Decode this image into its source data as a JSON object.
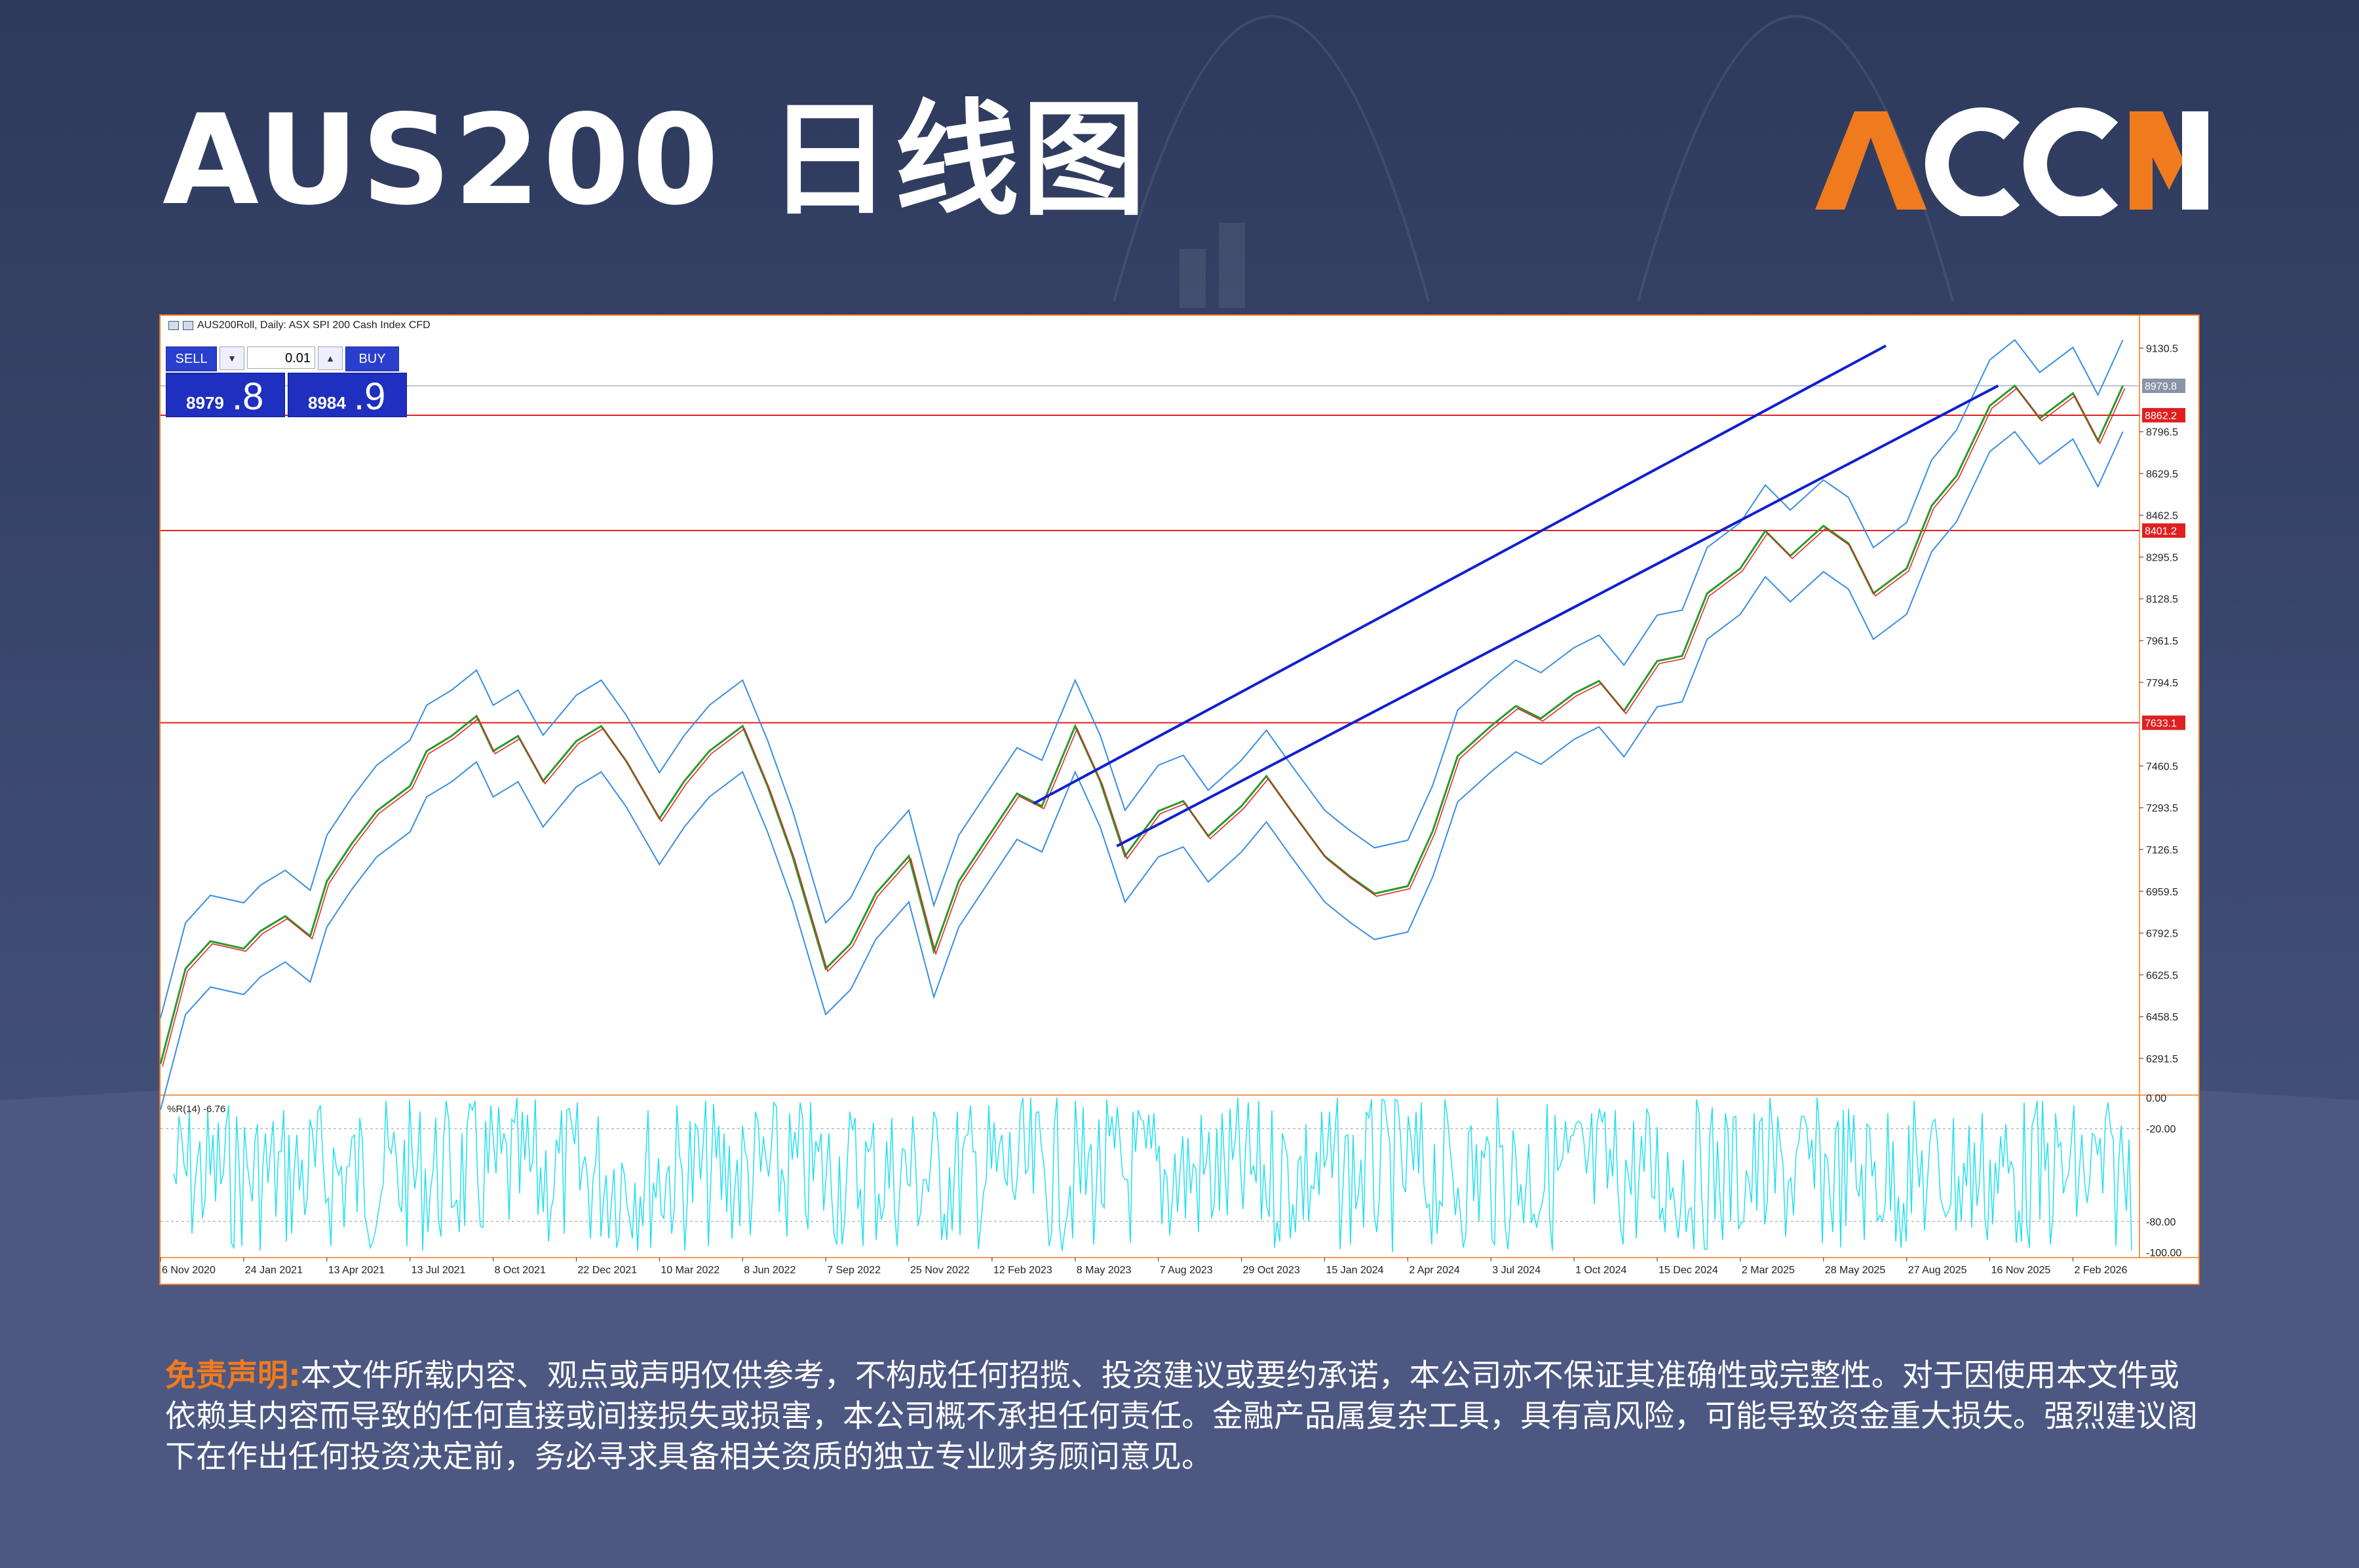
{
  "page": {
    "title": "AUS200 日线图",
    "logo_text": "ACCM",
    "disclaimer_label": "免责声明:",
    "disclaimer_text": "本文件所载内容、观点或声明仅供参考，不构成任何招揽、投资建议或要约承诺，本公司亦不保证其准确性或完整性。对于因使用本文件或依赖其内容而导致的任何直接或间接损失或损害，本公司概不承担任何责任。金融产品属复杂工具，具有高风险，可能导致资金重大损失。强烈建议阁下在作出任何投资决定前，务必寻求具备相关资质的独立专业财务顾问意见。",
    "colors": {
      "accent_orange": "#f07a1e",
      "background": "#2e3a5c"
    }
  },
  "trade_panel": {
    "sell_label": "SELL",
    "buy_label": "BUY",
    "volume": "0.01",
    "sell_price_small": "8979",
    "sell_price_big": ".8",
    "buy_price_small": "8984",
    "buy_price_big": ".9"
  },
  "chart_data": {
    "type": "line",
    "header": "AUS200Roll, Daily:  ASX SPI 200 Cash Index CFD",
    "y_ticks": [
      "9130.5",
      "8796.5",
      "8629.5",
      "8462.5",
      "8295.5",
      "8128.5",
      "7961.5",
      "7794.5",
      "7460.5",
      "7293.5",
      "7126.5",
      "6959.5",
      "6792.5",
      "6625.5",
      "6458.5",
      "6291.5"
    ],
    "ylim": [
      6150,
      9260
    ],
    "x_ticks": [
      "6 Nov 2020",
      "24 Jan 2021",
      "13 Apr 2021",
      "13 Jul 2021",
      "8 Oct 2021",
      "22 Dec 2021",
      "10 Mar 2022",
      "8 Jun 2022",
      "7 Sep 2022",
      "25 Nov 2022",
      "12 Feb 2023",
      "8 May 2023",
      "7 Aug 2023",
      "29 Oct 2023",
      "15 Jan 2024",
      "2 Apr 2024",
      "3 Jul 2024",
      "1 Oct 2024",
      "15 Dec 2024",
      "2 Mar 2025",
      "28 May 2025",
      "27 Aug 2025",
      "16 Nov 2025",
      "2 Feb 2026"
    ],
    "price_labels": [
      {
        "value": 8979.8,
        "text": "8979.8",
        "color": "#8a93a8"
      },
      {
        "value": 8862.2,
        "text": "8862.2",
        "color": "#e02020"
      },
      {
        "value": 8401.2,
        "text": "8401.2",
        "color": "#e02020"
      },
      {
        "value": 7633.1,
        "text": "7633.1",
        "color": "#e02020"
      }
    ],
    "horizontal_levels": [
      8862.2,
      8401.2,
      7633.1
    ],
    "current_price_line": 8979.8,
    "close_series": {
      "name": "",
      "x": [
        0,
        0.3,
        0.6,
        1,
        1.2,
        1.5,
        1.8,
        2,
        2.3,
        2.6,
        3,
        3.2,
        3.5,
        3.8,
        4,
        4.3,
        4.6,
        5,
        5.3,
        5.6,
        6,
        6.3,
        6.6,
        7,
        7.3,
        7.6,
        8,
        8.3,
        8.6,
        9,
        9.3,
        9.6,
        10,
        10.3,
        10.6,
        11,
        11.3,
        11.6,
        12,
        12.3,
        12.6,
        13,
        13.3,
        13.6,
        14,
        14.3,
        14.6,
        15,
        15.3,
        15.6,
        16,
        16.3,
        16.6,
        17,
        17.3,
        17.6,
        18,
        18.3,
        18.6,
        19,
        19.3,
        19.6,
        20,
        20.3,
        20.6,
        21,
        21.3,
        21.6,
        22,
        22.3,
        22.6,
        23,
        23.3,
        23.6
      ],
      "values": [
        6270,
        6650,
        6760,
        6730,
        6800,
        6860,
        6780,
        7000,
        7150,
        7280,
        7380,
        7520,
        7580,
        7660,
        7520,
        7580,
        7400,
        7560,
        7620,
        7480,
        7250,
        7400,
        7520,
        7620,
        7380,
        7100,
        6650,
        6750,
        6950,
        7100,
        6720,
        7000,
        7200,
        7350,
        7300,
        7620,
        7400,
        7100,
        7280,
        7320,
        7180,
        7300,
        7420,
        7280,
        7100,
        7020,
        6950,
        6980,
        7200,
        7500,
        7620,
        7700,
        7650,
        7750,
        7800,
        7680,
        7880,
        7900,
        8150,
        8250,
        8400,
        8300,
        8420,
        8350,
        8150,
        8250,
        8500,
        8620,
        8900,
        8980,
        8850,
        8950,
        8760,
        8980
      ]
    },
    "channel_upper": {
      "from": {
        "x": 10.5,
        "y": 7310
      },
      "to": {
        "x": 20.75,
        "y": 9140
      }
    },
    "channel_lower": {
      "from": {
        "x": 11.5,
        "y": 7140
      },
      "to": {
        "x": 22.1,
        "y": 8980
      }
    },
    "indicator": {
      "label": "%R(14) -6.76",
      "ticks": [
        "0.00",
        "-20.00",
        "-80.00",
        "-100.00"
      ],
      "ylim": [
        -100,
        0
      ],
      "color": "#23e0ee"
    },
    "grid": false
  }
}
